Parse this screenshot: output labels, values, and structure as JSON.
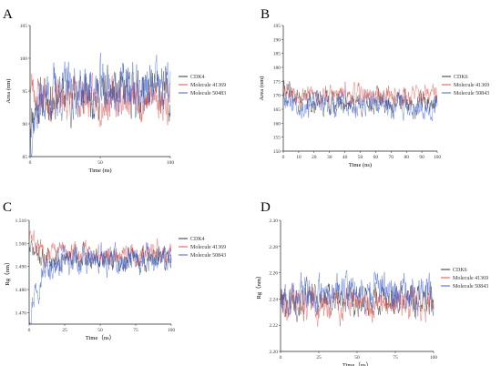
{
  "chart_data": [
    {
      "panel": "A",
      "type": "line",
      "xlabel": "Time (ns)",
      "ylabel": "Area (nm)",
      "xlim": [
        0,
        100
      ],
      "ylim": [
        85,
        105
      ],
      "xticks": [
        0,
        50,
        100
      ],
      "yticks": [
        85,
        90,
        95,
        100,
        105
      ],
      "legend": "right",
      "series": [
        {
          "name": "CDK4",
          "color": "#333333",
          "mean": 94.5,
          "spread": 2.2,
          "start": 91,
          "seed": 11
        },
        {
          "name": "Molecule 41369",
          "color": "#e0504a",
          "mean": 93.8,
          "spread": 2.0,
          "start": 96,
          "seed": 23
        },
        {
          "name": "Molecule 50483",
          "color": "#3b5fd9",
          "mean": 95.2,
          "spread": 2.6,
          "start": 89,
          "seed": 37
        }
      ]
    },
    {
      "panel": "B",
      "type": "line",
      "xlabel": "Time (ns)",
      "ylabel": "Area (nm)",
      "xlim": [
        0,
        100
      ],
      "ylim": [
        150,
        195
      ],
      "xticks": [
        0,
        10,
        20,
        30,
        40,
        50,
        60,
        70,
        80,
        90,
        100
      ],
      "yticks": [
        150,
        155,
        160,
        165,
        170,
        175,
        180,
        185,
        190,
        195
      ],
      "legend": "right",
      "series": [
        {
          "name": "CDK6",
          "color": "#333333",
          "mean": 167.5,
          "spread": 2.6,
          "start": 172,
          "seed": 41
        },
        {
          "name": "Molecule 41369",
          "color": "#e0504a",
          "mean": 170.0,
          "spread": 2.4,
          "start": 174,
          "seed": 53
        },
        {
          "name": "Molecule 50843",
          "color": "#3b5fd9",
          "mean": 166.5,
          "spread": 2.8,
          "start": 171,
          "seed": 67
        }
      ]
    },
    {
      "panel": "C",
      "type": "line",
      "xlabel": "Time（ns）",
      "ylabel": "Rg（nm）",
      "xlim": [
        0,
        100
      ],
      "ylim": [
        1.465,
        1.51
      ],
      "xticks": [
        0,
        25,
        50,
        75,
        100
      ],
      "yticks": [
        1.47,
        1.48,
        1.49,
        1.5,
        1.51
      ],
      "legend": "right",
      "series": [
        {
          "name": "CDK4",
          "color": "#333333",
          "mean": 1.493,
          "spread": 0.003,
          "start": 1.498,
          "seed": 71
        },
        {
          "name": "Molecule 41369",
          "color": "#e0504a",
          "mean": 1.496,
          "spread": 0.003,
          "start": 1.503,
          "seed": 83
        },
        {
          "name": "Molecule 50843",
          "color": "#3b5fd9",
          "mean": 1.492,
          "spread": 0.004,
          "start": 1.47,
          "seed": 97
        }
      ]
    },
    {
      "panel": "D",
      "type": "line",
      "xlabel": "Time（ns）",
      "ylabel": "Rg（nm）",
      "xlim": [
        0,
        100
      ],
      "ylim": [
        2.2,
        2.3
      ],
      "xticks": [
        0,
        25,
        50,
        75,
        100
      ],
      "yticks": [
        2.2,
        2.22,
        2.24,
        2.26,
        2.28,
        2.3
      ],
      "legend": "right",
      "series": [
        {
          "name": "CDK6",
          "color": "#333333",
          "mean": 2.24,
          "spread": 0.008,
          "start": 2.238,
          "seed": 101
        },
        {
          "name": "Molecule 41369",
          "color": "#e0504a",
          "mean": 2.236,
          "spread": 0.008,
          "start": 2.243,
          "seed": 113
        },
        {
          "name": "Molecule 50843",
          "color": "#3b5fd9",
          "mean": 2.245,
          "spread": 0.009,
          "start": 2.24,
          "seed": 127
        }
      ]
    }
  ]
}
